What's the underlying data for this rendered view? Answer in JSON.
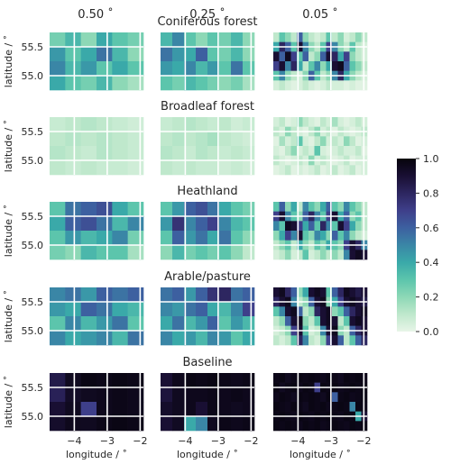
{
  "chart_data": {
    "type": "heatmap",
    "column_titles": [
      "0.50$^\\circ$",
      "0.25$^\\circ$",
      "0.05$^\\circ$"
    ],
    "column_titles_display": [
      "0.50 ˚",
      "0.25 ˚",
      "0.05 ˚"
    ],
    "row_titles": [
      "Coniferous forest",
      "Broadleaf forest",
      "Heathland",
      "Arable/pasture",
      "Baseline"
    ],
    "ylabel": "latitude / ˚",
    "xlabel": "longitude / ˚",
    "x_ticks": [
      "−4",
      "−3",
      "−2"
    ],
    "x_tick_values": [
      -4,
      -3,
      -2
    ],
    "y_ticks": [
      "55.5",
      "55.0"
    ],
    "y_tick_values": [
      55.5,
      55.0
    ],
    "xlim": [
      -4.75,
      -1.9
    ],
    "ylim": [
      54.75,
      55.75
    ],
    "colorbar": {
      "ticks": [
        "0.0",
        "0.2",
        "0.4",
        "0.6",
        "0.8",
        "1.0"
      ],
      "tick_values": [
        0,
        0.2,
        0.4,
        0.6,
        0.8,
        1.0
      ],
      "range": [
        0,
        1
      ]
    },
    "colormap": [
      "#e8f5e8",
      "#bfe8cc",
      "#8dd8b6",
      "#5cc5ac",
      "#3aa9a9",
      "#3a86a6",
      "#3d60a0",
      "#3e3f8a",
      "#2d2660",
      "#190f33",
      "#06040c"
    ],
    "grid": true,
    "panels": {
      "0.50": [
        [
          [
            0.25,
            0.35,
            0.2,
            0.4,
            0.3,
            0.25
          ],
          [
            0.45,
            0.3,
            0.4,
            0.55,
            0.35,
            0.2
          ],
          [
            0.5,
            0.35,
            0.45,
            0.3,
            0.4,
            0.3
          ],
          [
            0.4,
            0.3,
            0.25,
            0.35,
            0.2,
            0.15
          ]
        ],
        [
          [
            0.08,
            0.1,
            0.12,
            0.1,
            0.08,
            0.06
          ],
          [
            0.1,
            0.12,
            0.1,
            0.12,
            0.1,
            0.08
          ],
          [
            0.12,
            0.1,
            0.08,
            0.12,
            0.1,
            0.08
          ],
          [
            0.1,
            0.08,
            0.1,
            0.08,
            0.08,
            0.06
          ]
        ],
        [
          [
            0.3,
            0.55,
            0.6,
            0.65,
            0.4,
            0.3
          ],
          [
            0.4,
            0.6,
            0.65,
            0.55,
            0.35,
            0.5
          ],
          [
            0.3,
            0.45,
            0.35,
            0.4,
            0.5,
            0.25
          ],
          [
            0.25,
            0.2,
            0.35,
            0.3,
            0.3,
            0.15
          ]
        ],
        [
          [
            0.5,
            0.55,
            0.45,
            0.6,
            0.55,
            0.6
          ],
          [
            0.45,
            0.4,
            0.6,
            0.55,
            0.4,
            0.35
          ],
          [
            0.3,
            0.5,
            0.35,
            0.45,
            0.55,
            0.3
          ],
          [
            0.5,
            0.4,
            0.45,
            0.5,
            0.35,
            0.55
          ]
        ],
        [
          [
            0.85,
            0.95,
            0.98,
            0.97,
            0.98,
            0.97
          ],
          [
            0.82,
            0.93,
            0.95,
            0.96,
            0.97,
            0.96
          ],
          [
            0.9,
            0.95,
            0.7,
            0.96,
            0.97,
            0.96
          ],
          [
            0.92,
            0.96,
            0.95,
            0.97,
            0.98,
            0.97
          ]
        ]
      ],
      "0.25": [
        [
          [
            0.35,
            0.5,
            0.3,
            0.2,
            0.3,
            0.25,
            0.35,
            0.2
          ],
          [
            0.55,
            0.45,
            0.4,
            0.6,
            0.3,
            0.25,
            0.35,
            0.2
          ],
          [
            0.45,
            0.4,
            0.5,
            0.35,
            0.45,
            0.3,
            0.55,
            0.3
          ],
          [
            0.3,
            0.25,
            0.35,
            0.3,
            0.25,
            0.2,
            0.25,
            0.15
          ]
        ],
        [
          [
            0.08,
            0.1,
            0.12,
            0.1,
            0.08,
            0.1,
            0.06,
            0.08
          ],
          [
            0.1,
            0.12,
            0.1,
            0.12,
            0.15,
            0.1,
            0.08,
            0.06
          ],
          [
            0.12,
            0.1,
            0.08,
            0.12,
            0.1,
            0.08,
            0.1,
            0.08
          ],
          [
            0.1,
            0.08,
            0.1,
            0.08,
            0.08,
            0.06,
            0.08,
            0.06
          ]
        ],
        [
          [
            0.3,
            0.45,
            0.6,
            0.65,
            0.55,
            0.4,
            0.3,
            0.25
          ],
          [
            0.45,
            0.75,
            0.5,
            0.6,
            0.7,
            0.5,
            0.35,
            0.3
          ],
          [
            0.3,
            0.6,
            0.45,
            0.55,
            0.4,
            0.55,
            0.3,
            0.2
          ],
          [
            0.2,
            0.35,
            0.25,
            0.3,
            0.25,
            0.3,
            0.2,
            0.1
          ]
        ],
        [
          [
            0.55,
            0.6,
            0.45,
            0.6,
            0.75,
            0.8,
            0.55,
            0.6
          ],
          [
            0.5,
            0.45,
            0.55,
            0.6,
            0.4,
            0.35,
            0.5,
            0.7
          ],
          [
            0.4,
            0.55,
            0.35,
            0.45,
            0.6,
            0.3,
            0.45,
            0.35
          ],
          [
            0.5,
            0.4,
            0.45,
            0.35,
            0.5,
            0.45,
            0.3,
            0.4
          ]
        ],
        [
          [
            0.9,
            0.96,
            0.98,
            0.97,
            0.98,
            0.97,
            0.96,
            0.97
          ],
          [
            0.88,
            0.95,
            0.96,
            0.96,
            0.97,
            0.96,
            0.97,
            0.96
          ],
          [
            0.92,
            0.95,
            0.96,
            0.9,
            0.97,
            0.96,
            0.95,
            0.96
          ],
          [
            0.9,
            0.94,
            0.4,
            0.5,
            0.95,
            0.97,
            0.96,
            0.97
          ]
        ]
      ],
      "0.05": [
        [
          [
            0.1,
            0.3,
            0.2,
            0.1,
            0.6,
            0.2,
            0.1,
            0.05,
            0.1,
            0.3,
            0.1,
            0.2,
            0.05,
            0.1,
            0.2,
            0.1
          ],
          [
            0.4,
            0.8,
            0.6,
            0.3,
            0.9,
            0.5,
            0.2,
            0.1,
            0.3,
            0.7,
            0.5,
            0.2,
            0.1,
            0.3,
            0.1,
            0.05
          ],
          [
            0.9,
            0.6,
            0.95,
            0.7,
            0.3,
            0.6,
            0.1,
            0.2,
            0.6,
            0.9,
            0.8,
            0.4,
            0.7,
            0.2,
            0.1,
            0.05
          ],
          [
            0.7,
            0.9,
            0.5,
            0.8,
            0.4,
            0.1,
            0.3,
            0.5,
            0.2,
            0.4,
            0.9,
            0.95,
            0.6,
            0.3,
            0.2,
            0.1
          ],
          [
            0.3,
            0.5,
            0.2,
            0.1,
            0.05,
            0.2,
            0.6,
            0.3,
            0.1,
            0.2,
            0.5,
            0.8,
            0.4,
            0.2,
            0.1,
            0.05
          ],
          [
            0.05,
            0.1,
            0.05,
            0.02,
            0.05,
            0.1,
            0.05,
            0.02,
            0.05,
            0.1,
            0.05,
            0.05,
            0.02,
            0.05,
            0.02,
            0.02
          ]
        ],
        [
          [
            0.05,
            0.1,
            0.02,
            0.05,
            0.2,
            0.1,
            0.05,
            0.02,
            0.1,
            0.05,
            0.15,
            0.05,
            0.02,
            0.05,
            0.1,
            0.05
          ],
          [
            0.1,
            0.05,
            0.2,
            0.1,
            0.05,
            0.02,
            0.1,
            0.2,
            0.05,
            0.1,
            0.02,
            0.1,
            0.05,
            0.02,
            0.05,
            0.1
          ],
          [
            0.02,
            0.15,
            0.05,
            0.1,
            0.3,
            0.05,
            0.02,
            0.1,
            0.2,
            0.05,
            0.1,
            0.05,
            0.2,
            0.1,
            0.02,
            0.05
          ],
          [
            0.05,
            0.02,
            0.1,
            0.2,
            0.05,
            0.1,
            0.05,
            0.3,
            0.05,
            0.02,
            0.05,
            0.1,
            0.05,
            0.05,
            0.1,
            0.02
          ],
          [
            0.1,
            0.05,
            0.02,
            0.05,
            0.1,
            0.05,
            0.2,
            0.05,
            0.1,
            0.05,
            0.02,
            0.05,
            0.1,
            0.02,
            0.05,
            0.05
          ],
          [
            0.02,
            0.05,
            0.1,
            0.02,
            0.05,
            0.02,
            0.05,
            0.1,
            0.02,
            0.05,
            0.1,
            0.02,
            0.05,
            0.1,
            0.02,
            0.05
          ]
        ],
        [
          [
            0.3,
            0.6,
            0.2,
            0.4,
            0.1,
            0.5,
            0.3,
            0.2,
            0.4,
            0.6,
            0.3,
            0.2,
            0.5,
            0.3,
            0.2,
            0.1
          ],
          [
            0.7,
            0.9,
            0.5,
            0.3,
            0.2,
            0.6,
            0.8,
            0.5,
            0.3,
            0.7,
            0.9,
            0.4,
            0.6,
            0.2,
            0.3,
            0.1
          ],
          [
            0.5,
            0.3,
            0.95,
            0.9,
            0.7,
            0.4,
            0.6,
            0.3,
            0.8,
            0.5,
            0.3,
            0.9,
            0.7,
            0.4,
            0.2,
            0.1
          ],
          [
            0.2,
            0.4,
            0.7,
            0.5,
            0.9,
            0.3,
            0.2,
            0.5,
            0.4,
            0.2,
            0.6,
            0.3,
            0.5,
            0.2,
            0.1,
            0.05
          ],
          [
            0.1,
            0.2,
            0.3,
            0.1,
            0.4,
            0.2,
            0.1,
            0.3,
            0.2,
            0.4,
            0.3,
            0.2,
            0.7,
            0.9,
            0.8,
            0.5
          ],
          [
            0.05,
            0.1,
            0.2,
            0.05,
            0.1,
            0.3,
            0.05,
            0.1,
            0.2,
            0.1,
            0.2,
            0.1,
            0.5,
            0.9,
            0.95,
            0.9
          ]
        ],
        [
          [
            0.9,
            0.95,
            0.8,
            0.6,
            0.2,
            0.4,
            0.9,
            0.95,
            0.9,
            0.3,
            0.6,
            0.8,
            0.95,
            0.9,
            0.85,
            0.9
          ],
          [
            0.8,
            0.9,
            0.95,
            0.5,
            0.1,
            0.2,
            0.6,
            0.9,
            0.95,
            0.2,
            0.4,
            0.7,
            0.9,
            0.95,
            0.9,
            0.85
          ],
          [
            0.3,
            0.5,
            0.9,
            0.95,
            0.6,
            0.1,
            0.2,
            0.8,
            0.9,
            0.95,
            0.2,
            0.3,
            0.6,
            0.8,
            0.9,
            0.95
          ],
          [
            0.1,
            0.2,
            0.6,
            0.9,
            0.95,
            0.2,
            0.1,
            0.3,
            0.9,
            0.95,
            0.9,
            0.1,
            0.3,
            0.9,
            0.95,
            0.9
          ],
          [
            0.05,
            0.1,
            0.2,
            0.7,
            0.9,
            0.3,
            0.05,
            0.1,
            0.5,
            0.9,
            0.95,
            0.2,
            0.1,
            0.6,
            0.8,
            0.9
          ],
          [
            0.1,
            0.05,
            0.1,
            0.3,
            0.8,
            0.5,
            0.1,
            0.05,
            0.2,
            0.7,
            0.9,
            0.6,
            0.1,
            0.3,
            0.6,
            0.8
          ]
        ],
        [
          [
            0.97,
            0.98,
            0.95,
            0.97,
            0.98,
            0.97,
            0.98,
            0.97,
            0.96,
            0.98,
            0.97,
            0.95,
            0.98,
            0.97,
            0.98,
            0.97
          ],
          [
            0.98,
            0.95,
            0.97,
            0.98,
            0.96,
            0.98,
            0.97,
            0.7,
            0.98,
            0.97,
            0.98,
            0.96,
            0.97,
            0.98,
            0.97,
            0.98
          ],
          [
            0.96,
            0.98,
            0.97,
            0.95,
            0.98,
            0.97,
            0.98,
            0.97,
            0.95,
            0.98,
            0.6,
            0.97,
            0.98,
            0.96,
            0.97,
            0.98
          ],
          [
            0.98,
            0.97,
            0.96,
            0.98,
            0.97,
            0.95,
            0.98,
            0.97,
            0.98,
            0.96,
            0.97,
            0.98,
            0.97,
            0.5,
            0.98,
            0.97
          ],
          [
            0.97,
            0.98,
            0.97,
            0.96,
            0.98,
            0.97,
            0.96,
            0.98,
            0.97,
            0.98,
            0.97,
            0.96,
            0.98,
            0.97,
            0.4,
            0.9
          ],
          [
            0.98,
            0.97,
            0.98,
            0.97,
            0.96,
            0.98,
            0.97,
            0.98,
            0.96,
            0.97,
            0.98,
            0.97,
            0.96,
            0.98,
            0.97,
            0.98
          ]
        ]
      ]
    }
  }
}
